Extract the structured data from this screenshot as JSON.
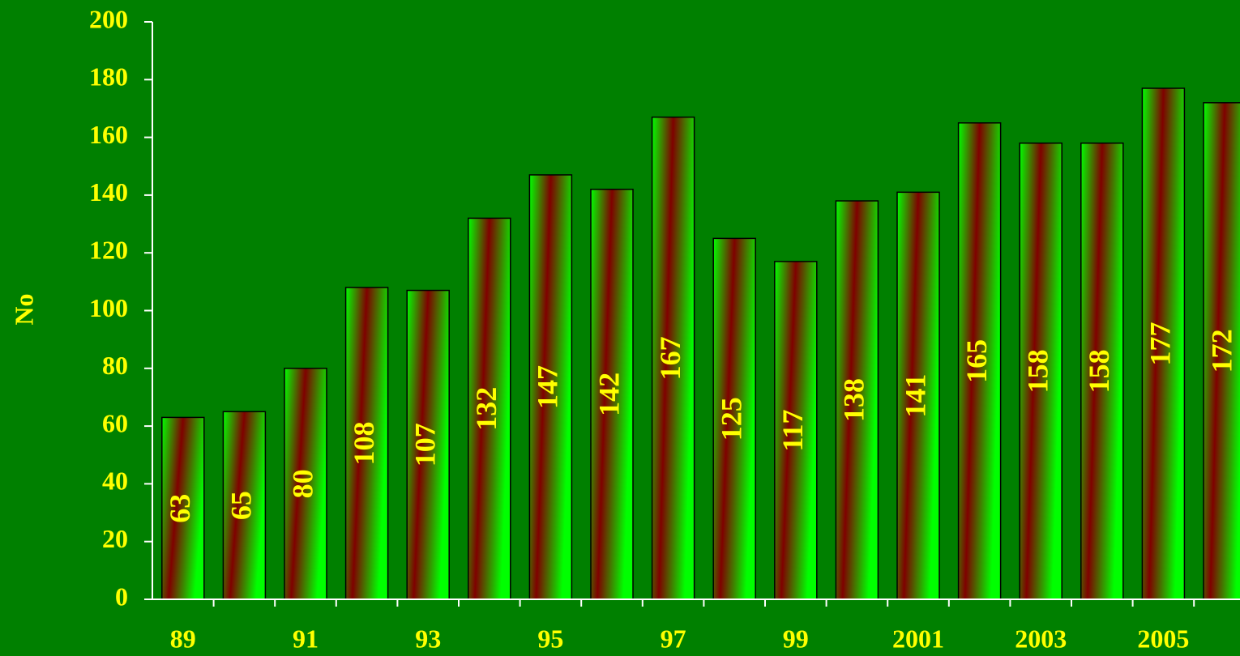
{
  "chart_data": {
    "type": "bar",
    "y_label": "No",
    "categories": [
      "89",
      null,
      "91",
      null,
      "93",
      null,
      "95",
      null,
      "97",
      null,
      "99",
      null,
      "2001",
      null,
      "2003",
      null,
      "2005",
      null
    ],
    "values": [
      63,
      65,
      80,
      108,
      107,
      132,
      147,
      142,
      167,
      125,
      117,
      138,
      141,
      165,
      158,
      158,
      177,
      172
    ],
    "color": "#00ff00",
    "stripe_color": "#800000",
    "ylim": [
      0,
      200
    ],
    "yticks": [
      0,
      20,
      40,
      60,
      80,
      100,
      120,
      140,
      160,
      180,
      200
    ]
  }
}
